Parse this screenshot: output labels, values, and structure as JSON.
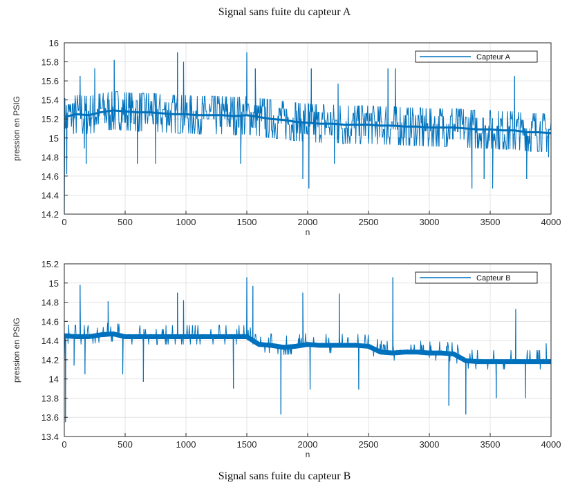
{
  "captions": {
    "top": "Signal sans fuite du capteur A",
    "bottom": "Signal sans fuite du capteur B"
  },
  "colors": {
    "line": "#0072bd",
    "grid": "#e3e3e3",
    "axis": "#262626"
  },
  "chart_data": [
    {
      "type": "line",
      "xlabel": "n",
      "ylabel": "pression en PSIG",
      "xlim": [
        0,
        4000
      ],
      "ylim": [
        14.2,
        16
      ],
      "xticks": [
        0,
        500,
        1000,
        1500,
        2000,
        2500,
        3000,
        3500,
        4000
      ],
      "yticks": [
        14.2,
        14.4,
        14.6,
        14.8,
        15,
        15.2,
        15.4,
        15.6,
        15.8,
        16
      ],
      "grid": true,
      "legend_position": "top-right",
      "series": [
        {
          "name": "Capteur A",
          "x": [
            0,
            100,
            200,
            300,
            400,
            500,
            600,
            700,
            800,
            900,
            1000,
            1100,
            1200,
            1300,
            1400,
            1500,
            1600,
            1700,
            1800,
            1900,
            2000,
            2100,
            2200,
            2300,
            2400,
            2500,
            2600,
            2700,
            2800,
            2900,
            3000,
            3100,
            3200,
            3300,
            3400,
            3500,
            3600,
            3700,
            3800,
            3900,
            4000
          ],
          "y": [
            15.22,
            15.25,
            15.24,
            15.27,
            15.29,
            15.28,
            15.27,
            15.27,
            15.26,
            15.25,
            15.25,
            15.24,
            15.24,
            15.24,
            15.23,
            15.24,
            15.22,
            15.2,
            15.19,
            15.17,
            15.16,
            15.15,
            15.15,
            15.14,
            15.14,
            15.14,
            15.13,
            15.13,
            15.12,
            15.12,
            15.11,
            15.11,
            15.11,
            15.1,
            15.09,
            15.09,
            15.08,
            15.08,
            15.06,
            15.06,
            15.05
          ],
          "spikes": [
            [
              0,
              14.2
            ],
            [
              20,
              14.62
            ],
            [
              130,
              15.65
            ],
            [
              165,
              14.89
            ],
            [
              180,
              14.73
            ],
            [
              250,
              15.73
            ],
            [
              410,
              15.82
            ],
            [
              600,
              14.73
            ],
            [
              750,
              14.73
            ],
            [
              930,
              15.9
            ],
            [
              980,
              15.8
            ],
            [
              1450,
              14.73
            ],
            [
              1500,
              15.9
            ],
            [
              1570,
              15.73
            ],
            [
              1960,
              14.57
            ],
            [
              2010,
              14.47
            ],
            [
              2030,
              15.73
            ],
            [
              2220,
              14.73
            ],
            [
              2250,
              15.57
            ],
            [
              2660,
              15.73
            ],
            [
              2720,
              15.73
            ],
            [
              3350,
              14.47
            ],
            [
              3450,
              14.57
            ],
            [
              3520,
              14.47
            ],
            [
              3700,
              15.65
            ],
            [
              3800,
              14.57
            ],
            [
              3980,
              14.8
            ]
          ]
        }
      ]
    },
    {
      "type": "line",
      "xlabel": "n",
      "ylabel": "pression en PSIG",
      "xlim": [
        0,
        4000
      ],
      "ylim": [
        13.4,
        15.2
      ],
      "xticks": [
        0,
        500,
        1000,
        1500,
        2000,
        2500,
        3000,
        3500,
        4000
      ],
      "yticks": [
        13.4,
        13.6,
        13.8,
        14,
        14.2,
        14.4,
        14.6,
        14.8,
        15,
        15.2
      ],
      "grid": true,
      "legend_position": "top-right",
      "series": [
        {
          "name": "Capteur B",
          "x": [
            0,
            100,
            200,
            300,
            400,
            500,
            600,
            700,
            800,
            900,
            1000,
            1100,
            1200,
            1300,
            1400,
            1500,
            1600,
            1700,
            1800,
            1900,
            2000,
            2100,
            2200,
            2300,
            2400,
            2500,
            2600,
            2700,
            2800,
            2900,
            3000,
            3100,
            3200,
            3300,
            3400,
            3500,
            3600,
            3700,
            3800,
            3900,
            4000
          ],
          "y": [
            14.45,
            14.44,
            14.44,
            14.46,
            14.47,
            14.44,
            14.44,
            14.44,
            14.44,
            14.44,
            14.44,
            14.44,
            14.44,
            14.44,
            14.44,
            14.44,
            14.36,
            14.35,
            14.33,
            14.34,
            14.36,
            14.35,
            14.35,
            14.35,
            14.35,
            14.34,
            14.28,
            14.27,
            14.28,
            14.28,
            14.27,
            14.27,
            14.26,
            14.19,
            14.18,
            14.18,
            14.18,
            14.18,
            14.18,
            14.18,
            14.18
          ],
          "spikes": [
            [
              0,
              14.2
            ],
            [
              10,
              13.55
            ],
            [
              80,
              14.14
            ],
            [
              130,
              14.98
            ],
            [
              170,
              14.05
            ],
            [
              360,
              14.81
            ],
            [
              480,
              14.05
            ],
            [
              650,
              13.97
            ],
            [
              930,
              14.9
            ],
            [
              980,
              14.82
            ],
            [
              1390,
              13.9
            ],
            [
              1500,
              15.06
            ],
            [
              1550,
              14.97
            ],
            [
              1780,
              13.63
            ],
            [
              1960,
              14.9
            ],
            [
              2020,
              13.89
            ],
            [
              2260,
              14.89
            ],
            [
              2420,
              13.89
            ],
            [
              2700,
              15.06
            ],
            [
              3000,
              14.22
            ],
            [
              3160,
              13.72
            ],
            [
              3300,
              13.63
            ],
            [
              3550,
              13.8
            ],
            [
              3710,
              14.73
            ],
            [
              3790,
              13.8
            ],
            [
              3960,
              14.37
            ]
          ]
        }
      ]
    }
  ]
}
